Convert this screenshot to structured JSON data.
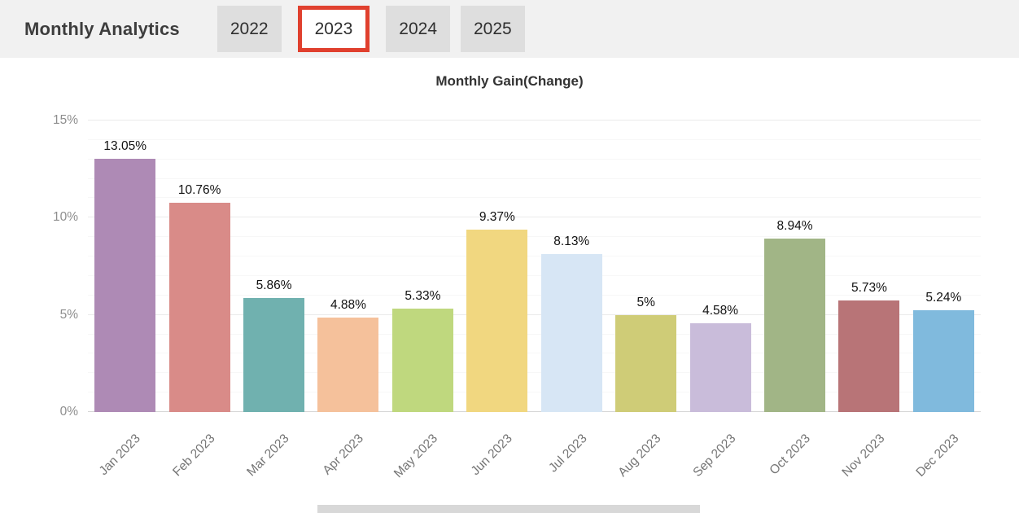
{
  "header": {
    "title": "Monthly Analytics",
    "tabs": [
      {
        "label": "2022",
        "selected": false
      },
      {
        "label": "2023",
        "selected": true
      },
      {
        "label": "2024",
        "selected": false
      },
      {
        "label": "2025",
        "selected": false
      }
    ]
  },
  "chart_data": {
    "type": "bar",
    "title": "Monthly Gain(Change)",
    "categories": [
      "Jan 2023",
      "Feb 2023",
      "Mar 2023",
      "Apr 2023",
      "May 2023",
      "Jun 2023",
      "Jul 2023",
      "Aug 2023",
      "Sep 2023",
      "Oct 2023",
      "Nov 2023",
      "Dec 2023"
    ],
    "values": [
      13.05,
      10.76,
      5.86,
      4.88,
      5.33,
      9.37,
      8.13,
      5,
      4.58,
      8.94,
      5.73,
      5.24
    ],
    "value_labels": [
      "13.05%",
      "10.76%",
      "5.86%",
      "4.88%",
      "5.33%",
      "9.37%",
      "8.13%",
      "5%",
      "4.58%",
      "8.94%",
      "5.73%",
      "5.24%"
    ],
    "bar_colors": [
      "#ae8ab5",
      "#d98b88",
      "#70b1af",
      "#f5c19b",
      "#bfd87e",
      "#f1d780",
      "#d7e6f5",
      "#cfcc77",
      "#c9bcda",
      "#a1b586",
      "#b87477",
      "#80badd"
    ],
    "ylim": [
      0,
      15
    ],
    "yticks": [
      {
        "value": 0,
        "label": "0%"
      },
      {
        "value": 5,
        "label": "5%"
      },
      {
        "value": 10,
        "label": "10%"
      },
      {
        "value": 15,
        "label": "15%"
      }
    ],
    "minor_grid_step": 1,
    "grid": true,
    "legend_position": "none",
    "x_label_rotation_deg": -45
  },
  "colors": {
    "header_bg": "#f1f1f1",
    "tab_bg": "#dedede",
    "selected_tab_bg": "#ffffff",
    "selected_tab_border": "#e0402e",
    "axis_text": "#8e8e8e",
    "x_axis_text": "#757575",
    "value_label_text": "#111111"
  }
}
